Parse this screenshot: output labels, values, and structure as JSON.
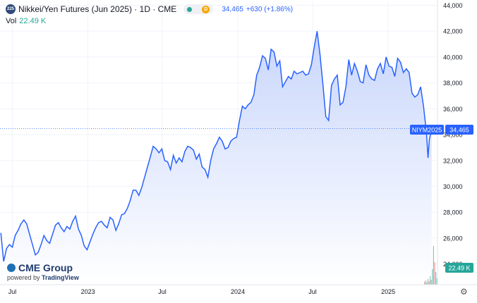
{
  "header": {
    "symbol_badge": "225",
    "title": "Nikkei/Yen Futures (Jun 2025) · 1D · CME",
    "d_badge": "D",
    "last_price": "34,465",
    "change": "+630 (+1.86%)",
    "vol_label": "Vol",
    "vol_value": "22.49 K"
  },
  "branding": {
    "cme": "CME Group",
    "powered_prefix": "powered by ",
    "powered_name": "TradingView"
  },
  "icons": [
    "cme-globe-icon",
    "settings-gear-icon"
  ],
  "colors": {
    "line": "#2962ff",
    "area_top": "#c8d6fb",
    "area_bottom": "#ffffff",
    "last_price_tag": "#2962ff",
    "volume_tag": "#26a69a"
  },
  "chart_data": {
    "type": "area",
    "y_ticks": [
      "44,000",
      "42,000",
      "40,000",
      "38,000",
      "36,000",
      "34,000",
      "32,000",
      "30,000",
      "28,000",
      "26,000",
      "24,000"
    ],
    "y_tick_values": [
      44000,
      42000,
      40000,
      38000,
      36000,
      34000,
      32000,
      30000,
      28000,
      26000,
      24000
    ],
    "ylim": [
      22400,
      44300
    ],
    "x_ticks": [
      {
        "label": "Jul",
        "date": "2022-07-01"
      },
      {
        "label": "2023",
        "date": "2023-01-01"
      },
      {
        "label": "Jul",
        "date": "2023-07-01"
      },
      {
        "label": "2024",
        "date": "2024-01-01"
      },
      {
        "label": "Jul",
        "date": "2024-07-01"
      },
      {
        "label": "2025",
        "date": "2025-01-01"
      }
    ],
    "xlim": [
      "2022-06-01",
      "2025-05-01"
    ],
    "grid": true,
    "last_label": "NIYM2025",
    "last_value": "34,465",
    "volume_label": "22.49 K",
    "series": [
      {
        "points": [
          [
            "2022-06-03",
            26400
          ],
          [
            "2022-06-10",
            24200
          ],
          [
            "2022-06-17",
            25200
          ],
          [
            "2022-06-24",
            25500
          ],
          [
            "2022-07-01",
            25300
          ],
          [
            "2022-07-08",
            26200
          ],
          [
            "2022-07-15",
            26600
          ],
          [
            "2022-07-22",
            27100
          ],
          [
            "2022-07-29",
            27400
          ],
          [
            "2022-08-05",
            27100
          ],
          [
            "2022-08-12",
            26300
          ],
          [
            "2022-08-19",
            25500
          ],
          [
            "2022-08-26",
            24700
          ],
          [
            "2022-09-02",
            24900
          ],
          [
            "2022-09-09",
            25500
          ],
          [
            "2022-09-16",
            26200
          ],
          [
            "2022-09-23",
            25800
          ],
          [
            "2022-09-30",
            25600
          ],
          [
            "2022-10-07",
            26300
          ],
          [
            "2022-10-14",
            27000
          ],
          [
            "2022-10-21",
            27200
          ],
          [
            "2022-10-28",
            26800
          ],
          [
            "2022-11-04",
            26500
          ],
          [
            "2022-11-11",
            26900
          ],
          [
            "2022-11-18",
            26700
          ],
          [
            "2022-11-25",
            27300
          ],
          [
            "2022-12-02",
            27700
          ],
          [
            "2022-12-09",
            26700
          ],
          [
            "2022-12-16",
            26200
          ],
          [
            "2022-12-23",
            25400
          ],
          [
            "2022-12-30",
            25100
          ],
          [
            "2023-01-06",
            25700
          ],
          [
            "2023-01-13",
            26300
          ],
          [
            "2023-01-20",
            26800
          ],
          [
            "2023-01-27",
            27200
          ],
          [
            "2023-02-03",
            27300
          ],
          [
            "2023-02-10",
            27000
          ],
          [
            "2023-02-17",
            26800
          ],
          [
            "2023-02-24",
            27600
          ],
          [
            "2023-03-03",
            27400
          ],
          [
            "2023-03-10",
            26600
          ],
          [
            "2023-03-17",
            27100
          ],
          [
            "2023-03-24",
            27800
          ],
          [
            "2023-03-31",
            27900
          ],
          [
            "2023-04-07",
            28300
          ],
          [
            "2023-04-14",
            28900
          ],
          [
            "2023-04-21",
            29700
          ],
          [
            "2023-04-28",
            29700
          ],
          [
            "2023-05-05",
            29300
          ],
          [
            "2023-05-12",
            29900
          ],
          [
            "2023-05-19",
            30700
          ],
          [
            "2023-05-26",
            31500
          ],
          [
            "2023-06-02",
            32300
          ],
          [
            "2023-06-09",
            33100
          ],
          [
            "2023-06-16",
            32900
          ],
          [
            "2023-06-23",
            32600
          ],
          [
            "2023-06-30",
            32900
          ],
          [
            "2023-07-07",
            32000
          ],
          [
            "2023-07-14",
            31900
          ],
          [
            "2023-07-21",
            31300
          ],
          [
            "2023-07-28",
            32400
          ],
          [
            "2023-08-04",
            31800
          ],
          [
            "2023-08-11",
            32200
          ],
          [
            "2023-08-18",
            31900
          ],
          [
            "2023-08-25",
            32700
          ],
          [
            "2023-09-01",
            33100
          ],
          [
            "2023-09-08",
            33000
          ],
          [
            "2023-09-15",
            32800
          ],
          [
            "2023-09-22",
            32100
          ],
          [
            "2023-09-29",
            32500
          ],
          [
            "2023-10-06",
            31500
          ],
          [
            "2023-10-13",
            31300
          ],
          [
            "2023-10-20",
            30700
          ],
          [
            "2023-10-27",
            32000
          ],
          [
            "2023-11-03",
            32900
          ],
          [
            "2023-11-10",
            33300
          ],
          [
            "2023-11-17",
            33800
          ],
          [
            "2023-11-24",
            33500
          ],
          [
            "2023-12-01",
            32900
          ],
          [
            "2023-12-08",
            33000
          ],
          [
            "2023-12-15",
            33500
          ],
          [
            "2023-12-22",
            33700
          ],
          [
            "2023-12-29",
            33800
          ],
          [
            "2024-01-05",
            35100
          ],
          [
            "2024-01-12",
            36200
          ],
          [
            "2024-01-19",
            36000
          ],
          [
            "2024-01-26",
            36300
          ],
          [
            "2024-02-02",
            36500
          ],
          [
            "2024-02-09",
            37100
          ],
          [
            "2024-02-16",
            38600
          ],
          [
            "2024-02-23",
            39200
          ],
          [
            "2024-03-01",
            40100
          ],
          [
            "2024-03-08",
            39900
          ],
          [
            "2024-03-15",
            39000
          ],
          [
            "2024-03-22",
            40600
          ],
          [
            "2024-03-29",
            40400
          ],
          [
            "2024-04-05",
            39300
          ],
          [
            "2024-04-12",
            39700
          ],
          [
            "2024-04-19",
            37700
          ],
          [
            "2024-04-26",
            38100
          ],
          [
            "2024-05-03",
            38500
          ],
          [
            "2024-05-10",
            38300
          ],
          [
            "2024-05-17",
            38900
          ],
          [
            "2024-05-24",
            38700
          ],
          [
            "2024-05-31",
            38800
          ],
          [
            "2024-06-07",
            38900
          ],
          [
            "2024-06-14",
            38600
          ],
          [
            "2024-06-21",
            38700
          ],
          [
            "2024-06-28",
            39400
          ],
          [
            "2024-07-05",
            40800
          ],
          [
            "2024-07-12",
            42000
          ],
          [
            "2024-07-19",
            40200
          ],
          [
            "2024-07-26",
            37900
          ],
          [
            "2024-08-02",
            35400
          ],
          [
            "2024-08-09",
            35100
          ],
          [
            "2024-08-16",
            37800
          ],
          [
            "2024-08-23",
            38300
          ],
          [
            "2024-08-30",
            38600
          ],
          [
            "2024-09-06",
            36300
          ],
          [
            "2024-09-13",
            36500
          ],
          [
            "2024-09-20",
            37700
          ],
          [
            "2024-09-27",
            39800
          ],
          [
            "2024-10-04",
            38600
          ],
          [
            "2024-10-11",
            39500
          ],
          [
            "2024-10-18",
            38900
          ],
          [
            "2024-10-25",
            38100
          ],
          [
            "2024-11-01",
            38000
          ],
          [
            "2024-11-08",
            39400
          ],
          [
            "2024-11-15",
            38600
          ],
          [
            "2024-11-22",
            38300
          ],
          [
            "2024-11-29",
            38200
          ],
          [
            "2024-12-06",
            39100
          ],
          [
            "2024-12-13",
            39500
          ],
          [
            "2024-12-20",
            38700
          ],
          [
            "2024-12-27",
            40000
          ],
          [
            "2025-01-03",
            39300
          ],
          [
            "2025-01-10",
            39200
          ],
          [
            "2025-01-17",
            38500
          ],
          [
            "2025-01-24",
            39900
          ],
          [
            "2025-01-31",
            39600
          ],
          [
            "2025-02-07",
            38800
          ],
          [
            "2025-02-14",
            39100
          ],
          [
            "2025-02-21",
            38800
          ],
          [
            "2025-02-28",
            37200
          ],
          [
            "2025-03-07",
            36900
          ],
          [
            "2025-03-14",
            37100
          ],
          [
            "2025-03-21",
            37700
          ],
          [
            "2025-03-28",
            36200
          ],
          [
            "2025-04-04",
            34200
          ],
          [
            "2025-04-08",
            32200
          ],
          [
            "2025-04-11",
            33600
          ],
          [
            "2025-04-17",
            34465
          ]
        ]
      }
    ]
  }
}
